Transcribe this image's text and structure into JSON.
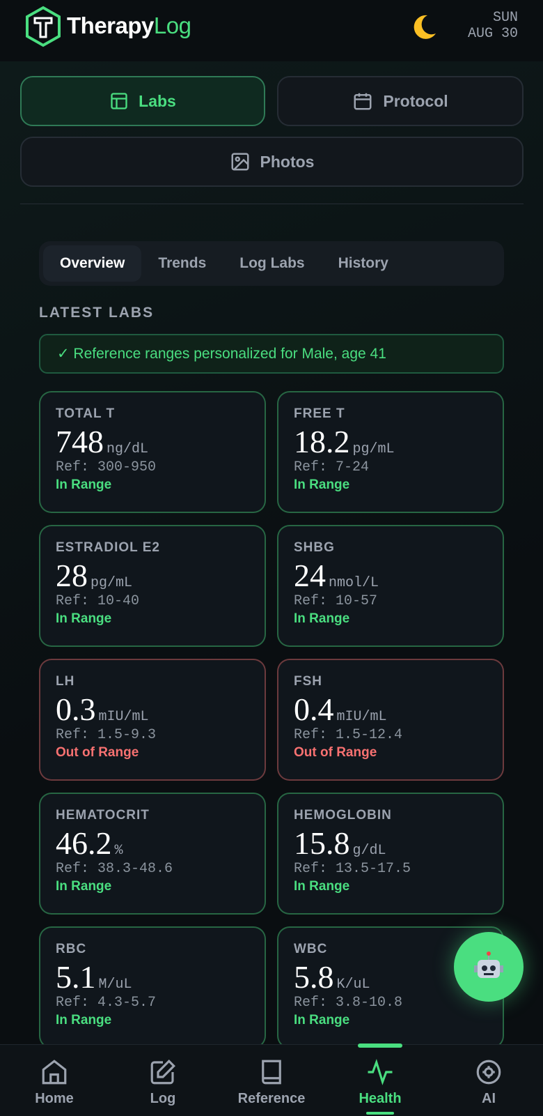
{
  "header": {
    "brand_part1": "Therapy",
    "brand_part2": "Log",
    "day": "SUN",
    "date": "AUG 30"
  },
  "tabs": [
    "Labs",
    "Protocol",
    "Photos"
  ],
  "subtabs": [
    "Overview",
    "Trends",
    "Log Labs",
    "History"
  ],
  "section_title": "LATEST LABS",
  "notice": "✓ Reference ranges personalized for Male, age 41",
  "labs": [
    {
      "name": "TOTAL T",
      "value": 748,
      "unit": "ng/dL",
      "ref": "Ref: 300-950",
      "status": "In Range",
      "color": "#4ade80"
    },
    {
      "name": "FREE T",
      "value": 18.2,
      "unit": "pg/mL",
      "ref": "Ref: 7-24",
      "status": "In Range",
      "color": "#4ade80"
    },
    {
      "name": "ESTRADIOL E2",
      "value": 28,
      "unit": "pg/mL",
      "ref": "Ref: 10-40",
      "status": "In Range",
      "color": "#4ade80"
    },
    {
      "name": "SHBG",
      "value": 24,
      "unit": "nmol/L",
      "ref": "Ref: 10-57",
      "status": "In Range",
      "color": "#4ade80"
    },
    {
      "name": "LH",
      "value": 0.3,
      "unit": "mIU/mL",
      "ref": "Ref: 1.5-9.3",
      "status": "Out of Range",
      "color": "#f87171"
    },
    {
      "name": "FSH",
      "value": 0.4,
      "unit": "mIU/mL",
      "ref": "Ref: 1.5-12.4",
      "status": "Out of Range",
      "color": "#f87171"
    },
    {
      "name": "HEMATOCRIT",
      "value": 46.2,
      "unit": "%",
      "ref": "Ref: 38.3-48.6",
      "status": "In Range",
      "color": "#4ade80"
    },
    {
      "name": "HEMOGLOBIN",
      "value": 15.8,
      "unit": "g/dL",
      "ref": "Ref: 13.5-17.5",
      "status": "In Range",
      "color": "#4ade80"
    },
    {
      "name": "RBC",
      "value": 5.1,
      "unit": "M/uL",
      "ref": "Ref: 4.3-5.7",
      "status": "In Range",
      "color": "#4ade80"
    },
    {
      "name": "WBC",
      "value": 5.8,
      "unit": "K/uL",
      "ref": "Ref: 3.8-10.8",
      "status": "In Range",
      "color": "#4ade80"
    }
  ],
  "nav": [
    "Home",
    "Log",
    "Reference",
    "Health",
    "AI"
  ]
}
